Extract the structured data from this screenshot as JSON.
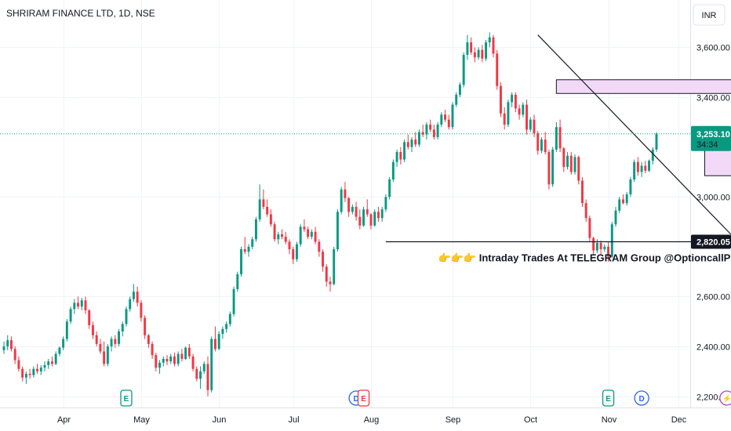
{
  "chart_data": {
    "type": "candlestick",
    "title": "SHRIRAM FINANCE LTD, 1D, NSE",
    "currency_button": "INR",
    "y_ticks": [
      "2,200.00",
      "2,400.00",
      "2,600.00",
      "3,000.00",
      "3,400.00",
      "3,600.00"
    ],
    "y_tick_values": [
      2200,
      2400,
      2600,
      3000,
      3400,
      3600
    ],
    "ylim": [
      2155,
      3790
    ],
    "x_ticks": [
      "Apr",
      "May",
      "Jun",
      "Jul",
      "Aug",
      "Sep",
      "Oct",
      "Nov",
      "Dec"
    ],
    "x_tick_index": [
      16,
      37,
      58,
      78,
      99,
      121,
      142,
      163,
      182
    ],
    "last_price": {
      "value": 3253.1,
      "label": "3,253.10",
      "countdown": "34:34"
    },
    "support_level": {
      "value": 2820.05,
      "label": "2,820.05"
    },
    "trendline": {
      "from": {
        "index": 144,
        "price": 3650
      },
      "to": {
        "index": 198,
        "price": 2820.05
      }
    },
    "support_line_range": {
      "from_index": 103,
      "to_index": 198
    },
    "resistance_zone": {
      "from_index": 149,
      "to_index": 202,
      "top": 3470,
      "bottom": 3415
    },
    "current_zone": {
      "from_index": 189,
      "to_index": 204,
      "top": 3195,
      "bottom": 3085
    },
    "annotation": {
      "text": "👉👉👉 Intraday Trades At TELEGRAM Group @OptioncallPro 📌",
      "index": 160,
      "price": 2742
    },
    "events": [
      {
        "index": 33,
        "letter": "E"
      },
      {
        "index": 95,
        "letter": "D"
      },
      {
        "index": 97,
        "letter": "E"
      },
      {
        "index": 163,
        "letter": "E"
      },
      {
        "index": 172,
        "letter": "D"
      },
      {
        "index": 195,
        "letter": "⚡"
      }
    ],
    "candles": [
      [
        2385,
        2420,
        2370,
        2400
      ],
      [
        2400,
        2445,
        2385,
        2425
      ],
      [
        2425,
        2440,
        2380,
        2390
      ],
      [
        2390,
        2400,
        2330,
        2345
      ],
      [
        2345,
        2360,
        2300,
        2310
      ],
      [
        2310,
        2320,
        2260,
        2275
      ],
      [
        2275,
        2300,
        2250,
        2290
      ],
      [
        2290,
        2310,
        2270,
        2285
      ],
      [
        2285,
        2320,
        2275,
        2310
      ],
      [
        2310,
        2330,
        2290,
        2300
      ],
      [
        2300,
        2325,
        2285,
        2315
      ],
      [
        2315,
        2340,
        2300,
        2325
      ],
      [
        2325,
        2350,
        2310,
        2340
      ],
      [
        2340,
        2360,
        2320,
        2330
      ],
      [
        2330,
        2380,
        2325,
        2370
      ],
      [
        2370,
        2400,
        2360,
        2395
      ],
      [
        2395,
        2440,
        2385,
        2430
      ],
      [
        2430,
        2510,
        2420,
        2500
      ],
      [
        2500,
        2560,
        2490,
        2550
      ],
      [
        2550,
        2590,
        2530,
        2575
      ],
      [
        2575,
        2600,
        2550,
        2560
      ],
      [
        2560,
        2595,
        2545,
        2585
      ],
      [
        2585,
        2600,
        2530,
        2545
      ],
      [
        2545,
        2550,
        2470,
        2485
      ],
      [
        2485,
        2500,
        2430,
        2445
      ],
      [
        2445,
        2460,
        2400,
        2410
      ],
      [
        2410,
        2430,
        2370,
        2380
      ],
      [
        2380,
        2420,
        2320,
        2330
      ],
      [
        2330,
        2410,
        2320,
        2400
      ],
      [
        2400,
        2440,
        2380,
        2430
      ],
      [
        2430,
        2445,
        2395,
        2410
      ],
      [
        2410,
        2470,
        2400,
        2460
      ],
      [
        2460,
        2500,
        2440,
        2490
      ],
      [
        2490,
        2560,
        2480,
        2550
      ],
      [
        2550,
        2600,
        2540,
        2590
      ],
      [
        2590,
        2650,
        2580,
        2620
      ],
      [
        2620,
        2640,
        2560,
        2575
      ],
      [
        2575,
        2585,
        2500,
        2515
      ],
      [
        2515,
        2525,
        2430,
        2445
      ],
      [
        2445,
        2450,
        2395,
        2410
      ],
      [
        2410,
        2420,
        2350,
        2365
      ],
      [
        2365,
        2375,
        2300,
        2315
      ],
      [
        2315,
        2345,
        2290,
        2335
      ],
      [
        2335,
        2360,
        2320,
        2350
      ],
      [
        2350,
        2365,
        2325,
        2340
      ],
      [
        2340,
        2370,
        2330,
        2360
      ],
      [
        2360,
        2375,
        2320,
        2330
      ],
      [
        2330,
        2380,
        2320,
        2370
      ],
      [
        2370,
        2390,
        2340,
        2350
      ],
      [
        2350,
        2400,
        2345,
        2395
      ],
      [
        2395,
        2410,
        2350,
        2360
      ],
      [
        2360,
        2370,
        2300,
        2310
      ],
      [
        2310,
        2320,
        2260,
        2270
      ],
      [
        2270,
        2320,
        2230,
        2300
      ],
      [
        2300,
        2340,
        2290,
        2330
      ],
      [
        2330,
        2360,
        2200,
        2225
      ],
      [
        2225,
        2440,
        2215,
        2430
      ],
      [
        2430,
        2480,
        2380,
        2390
      ],
      [
        2390,
        2460,
        2385,
        2450
      ],
      [
        2450,
        2480,
        2430,
        2470
      ],
      [
        2470,
        2500,
        2455,
        2490
      ],
      [
        2490,
        2540,
        2480,
        2530
      ],
      [
        2530,
        2640,
        2520,
        2630
      ],
      [
        2630,
        2700,
        2620,
        2690
      ],
      [
        2690,
        2800,
        2680,
        2790
      ],
      [
        2790,
        2840,
        2770,
        2780
      ],
      [
        2780,
        2810,
        2760,
        2800
      ],
      [
        2800,
        2840,
        2790,
        2830
      ],
      [
        2830,
        2920,
        2820,
        2910
      ],
      [
        2910,
        3050,
        2900,
        2990
      ],
      [
        2990,
        3030,
        2950,
        2960
      ],
      [
        2960,
        2990,
        2920,
        2930
      ],
      [
        2930,
        2950,
        2880,
        2890
      ],
      [
        2890,
        2900,
        2820,
        2830
      ],
      [
        2830,
        2860,
        2810,
        2850
      ],
      [
        2850,
        2870,
        2830,
        2840
      ],
      [
        2840,
        2860,
        2810,
        2820
      ],
      [
        2820,
        2830,
        2770,
        2790
      ],
      [
        2790,
        2800,
        2730,
        2750
      ],
      [
        2750,
        2820,
        2740,
        2810
      ],
      [
        2810,
        2890,
        2800,
        2880
      ],
      [
        2880,
        2910,
        2860,
        2870
      ],
      [
        2870,
        2880,
        2830,
        2840
      ],
      [
        2840,
        2870,
        2830,
        2860
      ],
      [
        2860,
        2880,
        2810,
        2820
      ],
      [
        2820,
        2830,
        2760,
        2780
      ],
      [
        2780,
        2790,
        2700,
        2720
      ],
      [
        2720,
        2730,
        2640,
        2660
      ],
      [
        2660,
        2680,
        2620,
        2650
      ],
      [
        2650,
        2800,
        2645,
        2790
      ],
      [
        2790,
        2950,
        2780,
        2940
      ],
      [
        2940,
        3040,
        2930,
        3030
      ],
      [
        3030,
        3060,
        2980,
        2995
      ],
      [
        2995,
        3000,
        2920,
        2940
      ],
      [
        2940,
        2970,
        2930,
        2960
      ],
      [
        2960,
        2980,
        2905,
        2920
      ],
      [
        2920,
        2950,
        2870,
        2885
      ],
      [
        2885,
        2960,
        2880,
        2950
      ],
      [
        2950,
        2990,
        2920,
        2930
      ],
      [
        2930,
        2935,
        2870,
        2885
      ],
      [
        2885,
        2950,
        2880,
        2940
      ],
      [
        2940,
        2960,
        2900,
        2915
      ],
      [
        2915,
        2960,
        2900,
        2950
      ],
      [
        2950,
        3010,
        2940,
        3000
      ],
      [
        3000,
        3080,
        2990,
        3070
      ],
      [
        3070,
        3150,
        3060,
        3140
      ],
      [
        3140,
        3190,
        3120,
        3180
      ],
      [
        3180,
        3200,
        3130,
        3150
      ],
      [
        3150,
        3230,
        3140,
        3220
      ],
      [
        3220,
        3250,
        3190,
        3200
      ],
      [
        3200,
        3240,
        3180,
        3230
      ],
      [
        3230,
        3260,
        3200,
        3210
      ],
      [
        3210,
        3270,
        3200,
        3260
      ],
      [
        3260,
        3290,
        3240,
        3250
      ],
      [
        3250,
        3300,
        3230,
        3290
      ],
      [
        3290,
        3310,
        3260,
        3270
      ],
      [
        3270,
        3290,
        3230,
        3240
      ],
      [
        3240,
        3300,
        3230,
        3290
      ],
      [
        3290,
        3340,
        3280,
        3330
      ],
      [
        3330,
        3350,
        3300,
        3310
      ],
      [
        3310,
        3330,
        3270,
        3280
      ],
      [
        3280,
        3380,
        3270,
        3370
      ],
      [
        3370,
        3420,
        3360,
        3410
      ],
      [
        3410,
        3460,
        3400,
        3450
      ],
      [
        3450,
        3580,
        3440,
        3570
      ],
      [
        3570,
        3650,
        3550,
        3620
      ],
      [
        3620,
        3640,
        3570,
        3580
      ],
      [
        3580,
        3600,
        3540,
        3560
      ],
      [
        3560,
        3600,
        3550,
        3590
      ],
      [
        3590,
        3610,
        3540,
        3555
      ],
      [
        3555,
        3630,
        3545,
        3620
      ],
      [
        3620,
        3660,
        3600,
        3640
      ],
      [
        3640,
        3650,
        3560,
        3575
      ],
      [
        3575,
        3590,
        3430,
        3445
      ],
      [
        3445,
        3460,
        3320,
        3335
      ],
      [
        3335,
        3360,
        3270,
        3290
      ],
      [
        3290,
        3390,
        3280,
        3380
      ],
      [
        3380,
        3420,
        3360,
        3410
      ],
      [
        3410,
        3420,
        3340,
        3355
      ],
      [
        3355,
        3370,
        3310,
        3330
      ],
      [
        3330,
        3380,
        3320,
        3370
      ],
      [
        3370,
        3390,
        3250,
        3270
      ],
      [
        3270,
        3320,
        3260,
        3310
      ],
      [
        3310,
        3330,
        3240,
        3255
      ],
      [
        3255,
        3265,
        3170,
        3185
      ],
      [
        3185,
        3240,
        3175,
        3230
      ],
      [
        3230,
        3260,
        3170,
        3180
      ],
      [
        3180,
        3190,
        3030,
        3050
      ],
      [
        3050,
        3200,
        3040,
        3190
      ],
      [
        3190,
        3300,
        3180,
        3280
      ],
      [
        3280,
        3310,
        3180,
        3195
      ],
      [
        3195,
        3200,
        3100,
        3120
      ],
      [
        3120,
        3180,
        3110,
        3165
      ],
      [
        3165,
        3180,
        3090,
        3100
      ],
      [
        3100,
        3170,
        3090,
        3160
      ],
      [
        3160,
        3165,
        3050,
        3065
      ],
      [
        3065,
        3080,
        2960,
        2975
      ],
      [
        2975,
        2990,
        2900,
        2915
      ],
      [
        2915,
        2925,
        2820,
        2835
      ],
      [
        2835,
        2840,
        2770,
        2785
      ],
      [
        2785,
        2830,
        2775,
        2815
      ],
      [
        2815,
        2825,
        2770,
        2790
      ],
      [
        2790,
        2810,
        2780,
        2800
      ],
      [
        2800,
        2820,
        2740,
        2760
      ],
      [
        2760,
        2900,
        2755,
        2890
      ],
      [
        2890,
        2960,
        2880,
        2945
      ],
      [
        2945,
        3000,
        2935,
        2990
      ],
      [
        2990,
        3010,
        2970,
        2975
      ],
      [
        2975,
        3020,
        2965,
        3010
      ],
      [
        3010,
        3080,
        3000,
        3070
      ],
      [
        3070,
        3150,
        3060,
        3140
      ],
      [
        3140,
        3160,
        3085,
        3100
      ],
      [
        3100,
        3140,
        3080,
        3125
      ],
      [
        3125,
        3145,
        3095,
        3105
      ],
      [
        3105,
        3150,
        3100,
        3145
      ],
      [
        3145,
        3200,
        3130,
        3190
      ],
      [
        3190,
        3260,
        3180,
        3253.1
      ]
    ]
  }
}
